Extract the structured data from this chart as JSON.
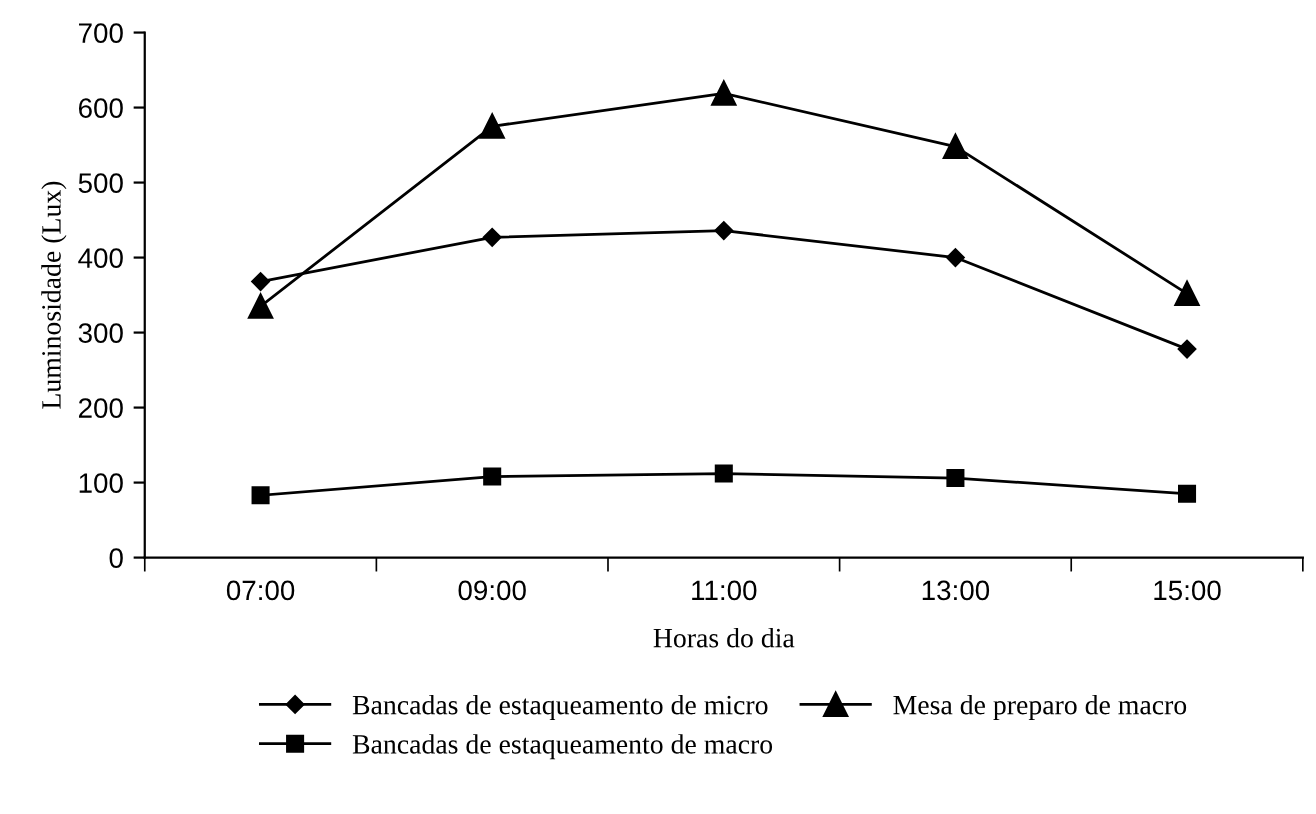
{
  "chart_data": {
    "type": "line",
    "xlabel": "Horas do dia",
    "ylabel": "Luminosidade (Lux)",
    "categories": [
      "07:00",
      "09:00",
      "11:00",
      "13:00",
      "15:00"
    ],
    "ylim": [
      0,
      700
    ],
    "yticks": [
      0,
      100,
      200,
      300,
      400,
      500,
      600,
      700
    ],
    "grid": false,
    "legend": "bottom",
    "line_style": "solid",
    "series": [
      {
        "name": "Bancadas de estaqueamento de micro",
        "color": "#000000",
        "marker": "diamond",
        "values": [
          368,
          427,
          436,
          400,
          278
        ]
      },
      {
        "name": "Bancadas de estaqueamento de macro",
        "color": "#000000",
        "marker": "square",
        "values": [
          83,
          108,
          112,
          106,
          85
        ]
      },
      {
        "name": "Mesa de preparo de macro",
        "color": "#000000",
        "marker": "triangle",
        "values": [
          335,
          575,
          619,
          548,
          352
        ]
      }
    ]
  }
}
